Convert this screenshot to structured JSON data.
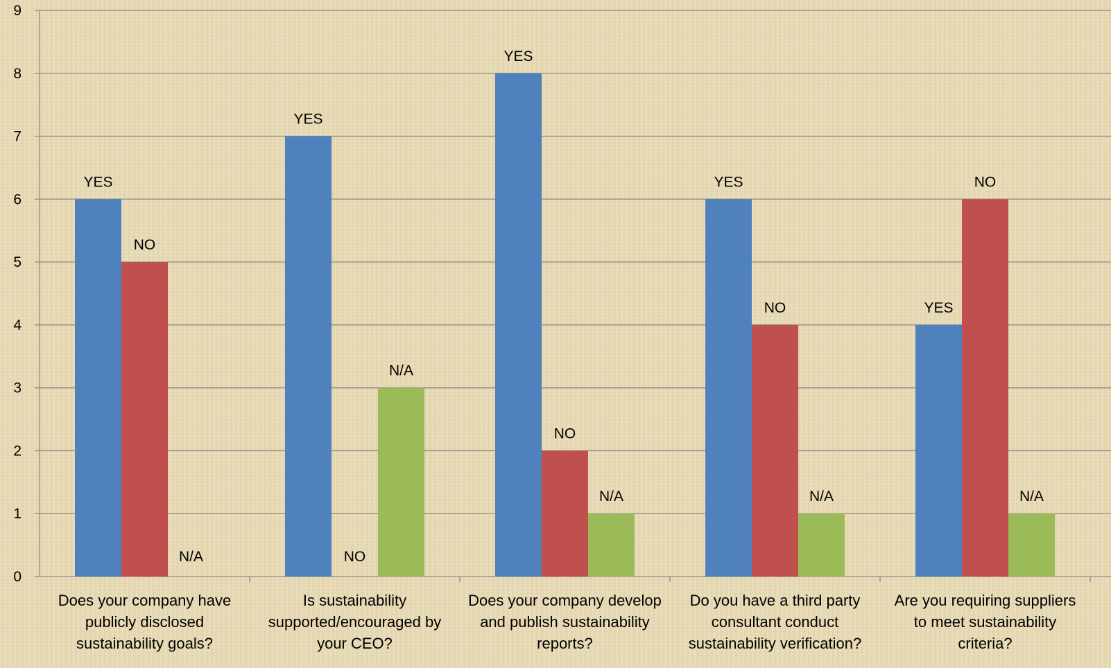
{
  "chart_data": {
    "type": "bar",
    "categories": [
      [
        "Does your company have",
        "publicly disclosed",
        "sustainability goals?"
      ],
      [
        "Is sustainability",
        "supported/encouraged by",
        "your CEO?"
      ],
      [
        "Does your company develop",
        "and publish sustainability",
        "reports?"
      ],
      [
        "Do you have a third party",
        "consultant conduct",
        "sustainability verification?"
      ],
      [
        "Are you requiring suppliers",
        "to meet sustainability",
        "criteria?"
      ]
    ],
    "series": [
      {
        "label": "YES",
        "color": "#4f81bd",
        "values": [
          6,
          7,
          8,
          6,
          4
        ]
      },
      {
        "label": "NO",
        "color": "#c0504d",
        "values": [
          5,
          0,
          2,
          4,
          6
        ]
      },
      {
        "label": "N/A",
        "color": "#9bbb59",
        "values": [
          0,
          3,
          1,
          1,
          1
        ]
      }
    ],
    "ylim": [
      0,
      9
    ],
    "yticks": [
      0,
      1,
      2,
      3,
      4,
      5,
      6,
      7,
      8,
      9
    ],
    "grid": true,
    "legend": "none"
  }
}
